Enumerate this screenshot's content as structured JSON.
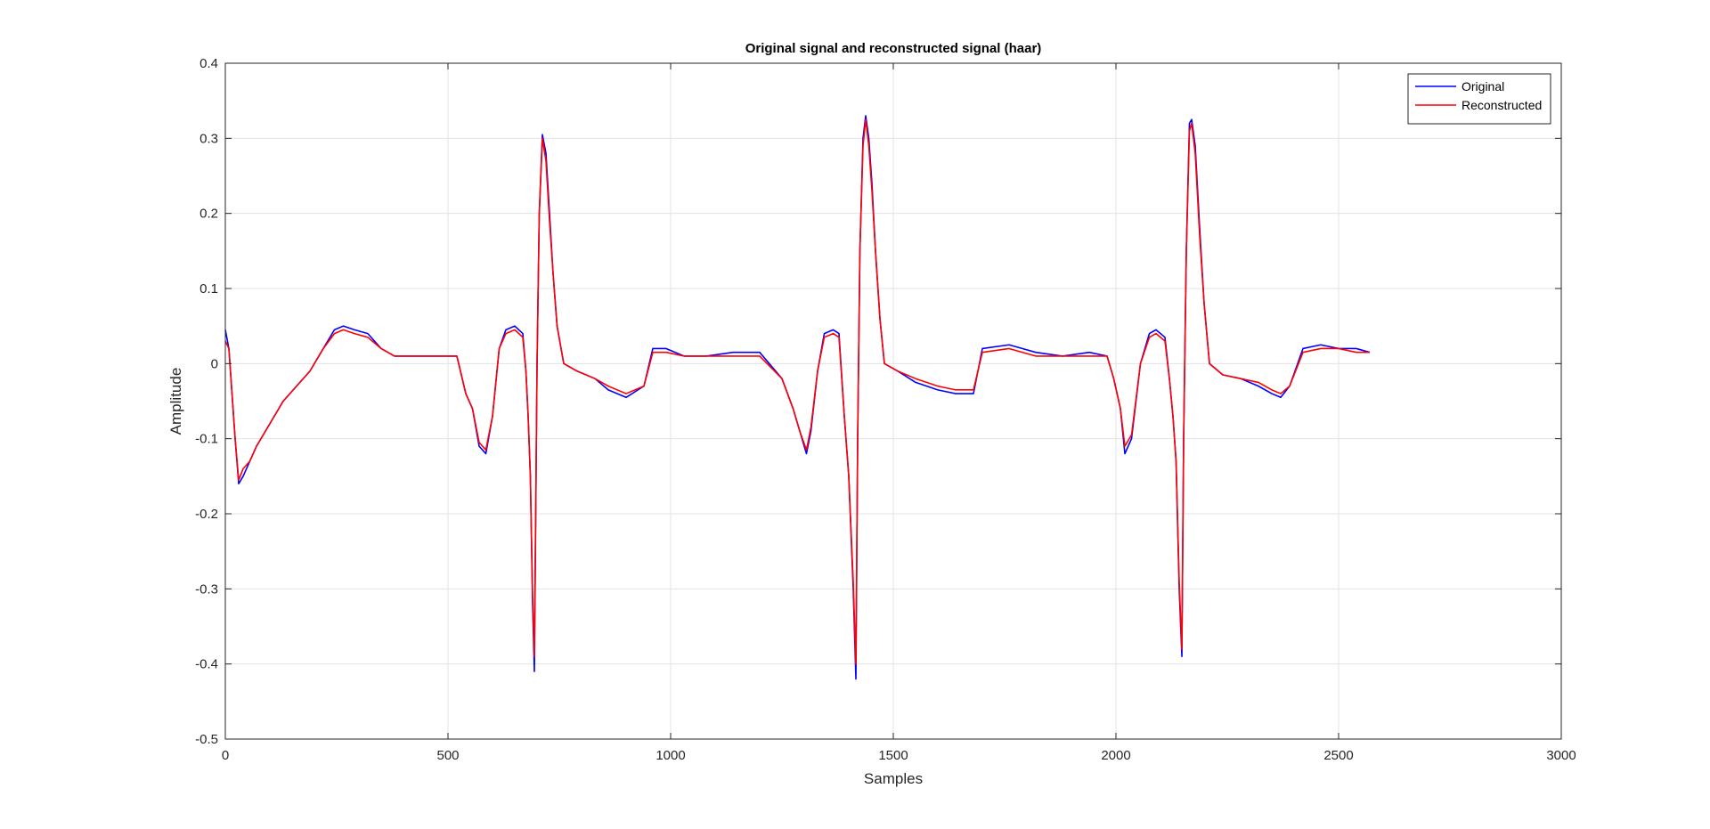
{
  "chart_data": {
    "type": "line",
    "title": "Original signal and reconstructed signal (haar)",
    "xlabel": "Samples",
    "ylabel": "Amplitude",
    "xlim": [
      0,
      3000
    ],
    "ylim": [
      -0.5,
      0.4
    ],
    "xticks": [
      0,
      500,
      1000,
      1500,
      2000,
      2500,
      3000
    ],
    "xtick_labels": [
      "0",
      "500",
      "1000",
      "1500",
      "2000",
      "2500",
      "3000"
    ],
    "yticks": [
      0.4,
      0.3,
      0.2,
      0.1,
      0,
      -0.1,
      -0.2,
      -0.3,
      -0.4,
      -0.5
    ],
    "ytick_labels": [
      "0.4",
      "0.3",
      "0.2",
      "0.1",
      "0",
      "-0.1",
      "-0.2",
      "-0.3",
      "-0.4",
      "-0.5"
    ],
    "grid": true,
    "legend_position": "top-right",
    "series": [
      {
        "name": "Original",
        "color": "#0000ff",
        "x": [
          0,
          8,
          15,
          22,
          30,
          40,
          55,
          70,
          90,
          110,
          130,
          160,
          190,
          220,
          245,
          265,
          290,
          320,
          350,
          380,
          420,
          460,
          520,
          540,
          555,
          570,
          585,
          600,
          615,
          630,
          650,
          668,
          675,
          680,
          685,
          690,
          694,
          700,
          705,
          712,
          720,
          728,
          736,
          745,
          760,
          790,
          830,
          860,
          900,
          940,
          960,
          990,
          1030,
          1080,
          1140,
          1200,
          1250,
          1275,
          1290,
          1305,
          1315,
          1330,
          1345,
          1365,
          1378,
          1390,
          1400,
          1410,
          1416,
          1420,
          1425,
          1432,
          1438,
          1445,
          1452,
          1460,
          1470,
          1480,
          1510,
          1550,
          1600,
          1640,
          1680,
          1700,
          1760,
          1820,
          1880,
          1940,
          1980,
          1995,
          2010,
          2020,
          2035,
          2055,
          2075,
          2090,
          2110,
          2120,
          2128,
          2135,
          2142,
          2148,
          2152,
          2158,
          2165,
          2170,
          2178,
          2188,
          2198,
          2210,
          2240,
          2280,
          2320,
          2350,
          2370,
          2390,
          2420,
          2460,
          2500,
          2540,
          2570
        ],
        "y": [
          0.045,
          0.02,
          -0.04,
          -0.1,
          -0.16,
          -0.15,
          -0.13,
          -0.11,
          -0.09,
          -0.07,
          -0.05,
          -0.03,
          -0.01,
          0.02,
          0.045,
          0.05,
          0.045,
          0.04,
          0.02,
          0.01,
          0.01,
          0.01,
          0.01,
          -0.04,
          -0.06,
          -0.11,
          -0.12,
          -0.07,
          0.02,
          0.045,
          0.05,
          0.04,
          -0.01,
          -0.07,
          -0.15,
          -0.32,
          -0.41,
          0.0,
          0.2,
          0.305,
          0.28,
          0.2,
          0.12,
          0.05,
          0.0,
          -0.01,
          -0.02,
          -0.035,
          -0.045,
          -0.03,
          0.02,
          0.02,
          0.01,
          0.01,
          0.015,
          0.015,
          -0.02,
          -0.06,
          -0.09,
          -0.12,
          -0.09,
          -0.01,
          0.04,
          0.045,
          0.04,
          -0.07,
          -0.15,
          -0.3,
          -0.42,
          -0.1,
          0.15,
          0.3,
          0.33,
          0.3,
          0.24,
          0.15,
          0.06,
          0.0,
          -0.01,
          -0.025,
          -0.035,
          -0.04,
          -0.04,
          0.02,
          0.025,
          0.015,
          0.01,
          0.015,
          0.01,
          -0.02,
          -0.06,
          -0.12,
          -0.1,
          0.0,
          0.04,
          0.045,
          0.035,
          -0.02,
          -0.07,
          -0.13,
          -0.3,
          -0.39,
          -0.1,
          0.15,
          0.32,
          0.325,
          0.29,
          0.18,
          0.08,
          0.0,
          -0.015,
          -0.02,
          -0.03,
          -0.04,
          -0.045,
          -0.03,
          0.02,
          0.025,
          0.02,
          0.02,
          0.015
        ]
      },
      {
        "name": "Reconstructed",
        "color": "#ff0000",
        "x": [
          0,
          8,
          15,
          22,
          30,
          40,
          55,
          70,
          90,
          110,
          130,
          160,
          190,
          220,
          245,
          265,
          290,
          320,
          350,
          380,
          420,
          460,
          520,
          540,
          555,
          570,
          585,
          600,
          615,
          630,
          650,
          668,
          675,
          680,
          685,
          690,
          694,
          700,
          705,
          712,
          720,
          728,
          736,
          745,
          760,
          790,
          830,
          860,
          900,
          940,
          960,
          990,
          1030,
          1080,
          1140,
          1200,
          1250,
          1275,
          1290,
          1305,
          1315,
          1330,
          1345,
          1365,
          1378,
          1390,
          1400,
          1410,
          1416,
          1420,
          1425,
          1432,
          1438,
          1445,
          1452,
          1460,
          1470,
          1480,
          1510,
          1550,
          1600,
          1640,
          1680,
          1700,
          1760,
          1820,
          1880,
          1940,
          1980,
          1995,
          2010,
          2020,
          2035,
          2055,
          2075,
          2090,
          2110,
          2120,
          2128,
          2135,
          2142,
          2148,
          2152,
          2158,
          2165,
          2170,
          2178,
          2188,
          2198,
          2210,
          2240,
          2280,
          2320,
          2350,
          2370,
          2390,
          2420,
          2460,
          2500,
          2540,
          2570
        ],
        "y": [
          0.03,
          0.02,
          -0.04,
          -0.1,
          -0.155,
          -0.14,
          -0.13,
          -0.11,
          -0.09,
          -0.07,
          -0.05,
          -0.03,
          -0.01,
          0.02,
          0.04,
          0.045,
          0.04,
          0.035,
          0.02,
          0.01,
          0.01,
          0.01,
          0.01,
          -0.04,
          -0.06,
          -0.105,
          -0.115,
          -0.07,
          0.02,
          0.04,
          0.045,
          0.035,
          -0.01,
          -0.07,
          -0.15,
          -0.31,
          -0.39,
          0.0,
          0.2,
          0.3,
          0.27,
          0.19,
          0.12,
          0.05,
          0.0,
          -0.01,
          -0.02,
          -0.03,
          -0.04,
          -0.03,
          0.015,
          0.015,
          0.01,
          0.01,
          0.01,
          0.01,
          -0.02,
          -0.06,
          -0.09,
          -0.115,
          -0.085,
          -0.01,
          0.035,
          0.04,
          0.035,
          -0.07,
          -0.15,
          -0.29,
          -0.4,
          -0.1,
          0.15,
          0.29,
          0.325,
          0.29,
          0.23,
          0.15,
          0.06,
          0.0,
          -0.01,
          -0.02,
          -0.03,
          -0.035,
          -0.035,
          0.015,
          0.02,
          0.01,
          0.01,
          0.01,
          0.01,
          -0.02,
          -0.06,
          -0.11,
          -0.095,
          0.0,
          0.035,
          0.04,
          0.03,
          -0.02,
          -0.07,
          -0.13,
          -0.29,
          -0.38,
          -0.1,
          0.15,
          0.31,
          0.32,
          0.28,
          0.17,
          0.08,
          0.0,
          -0.015,
          -0.02,
          -0.025,
          -0.035,
          -0.04,
          -0.03,
          0.015,
          0.02,
          0.02,
          0.015,
          0.015
        ]
      }
    ]
  }
}
